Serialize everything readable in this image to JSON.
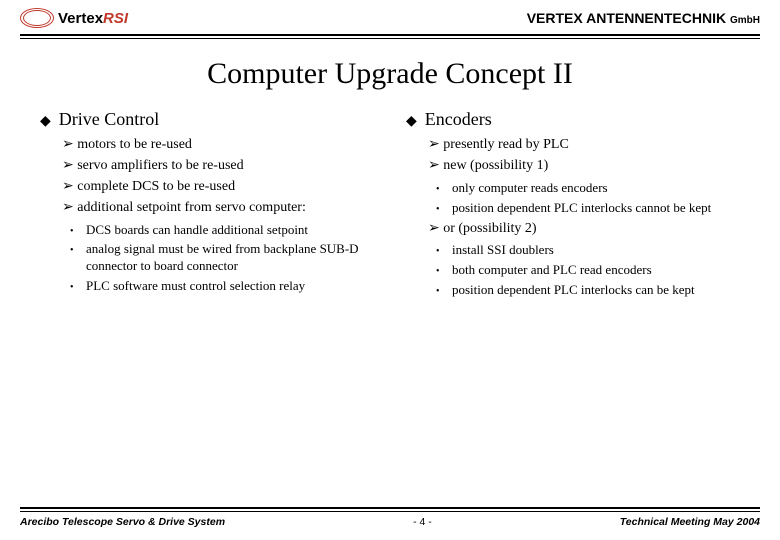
{
  "header": {
    "logo_text_black": "Vertex",
    "logo_text_red": "RSI",
    "company": "VERTEX ANTENNENTECHNIK",
    "suffix": "GmbH"
  },
  "title": "Computer Upgrade Concept II",
  "left": {
    "heading": "Drive Control",
    "items": [
      "motors to be re-used",
      "servo amplifiers to be re-used",
      "complete DCS to be re-used",
      "additional setpoint from servo computer:"
    ],
    "sub": [
      "DCS boards can handle additional setpoint",
      "analog signal must be wired from backplane SUB-D connector to board connector",
      "PLC software must control selection relay"
    ]
  },
  "right": {
    "heading": "Encoders",
    "items1": [
      "presently read by PLC",
      "new (possibility 1)"
    ],
    "sub1": [
      "only computer reads encoders",
      "position dependent PLC interlocks cannot be kept"
    ],
    "items2": [
      "or (possibility 2)"
    ],
    "sub2": [
      "install SSI doublers",
      "both computer and PLC read encoders",
      "position dependent PLC interlocks can be kept"
    ]
  },
  "footer": {
    "left": "Arecibo Telescope Servo & Drive System",
    "center": "- 4 -",
    "right": "Technical Meeting May 2004"
  },
  "colors": {
    "accent": "#c0392b",
    "text": "#000000",
    "background": "#ffffff"
  }
}
